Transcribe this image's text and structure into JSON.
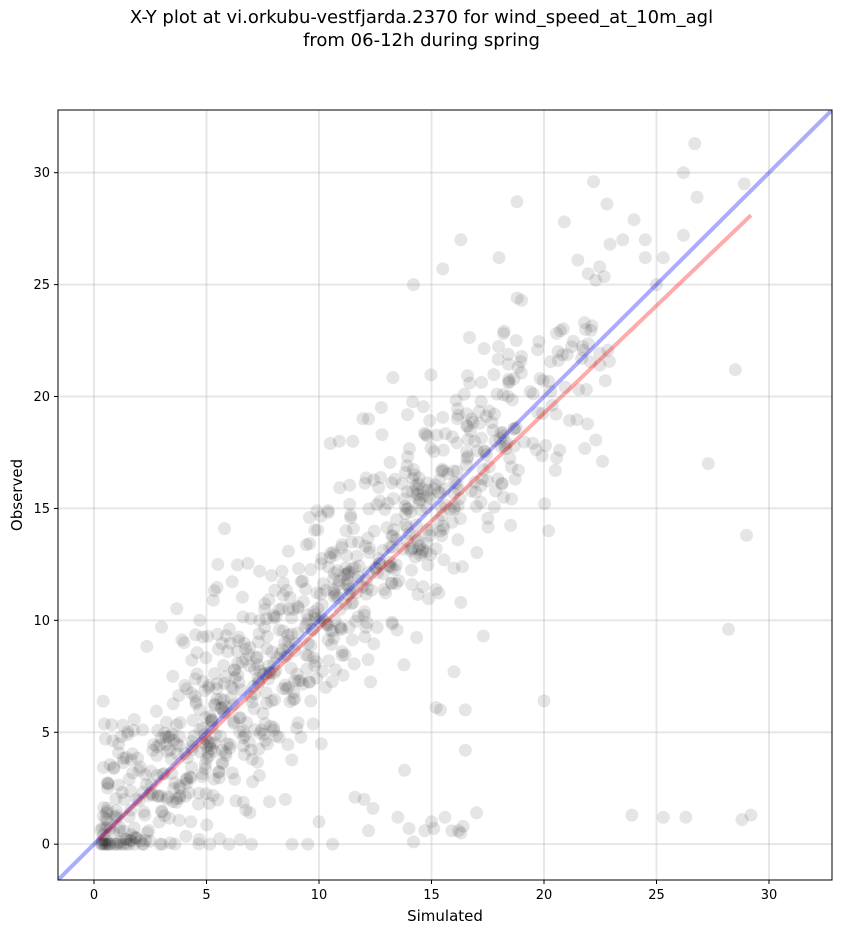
{
  "chart_data": {
    "type": "scatter",
    "title": "X-Y plot at vi.orkubu-vestfjarda.2370 for wind_speed_at_10m_agl\nfrom 06-12h during spring",
    "xlabel": "Simulated",
    "ylabel": "Observed",
    "xlim": [
      -1.6,
      32.8
    ],
    "ylim": [
      -1.6,
      32.8
    ],
    "xticks": [
      0,
      5,
      10,
      15,
      20,
      25,
      30
    ],
    "yticks": [
      0,
      5,
      10,
      15,
      20,
      25,
      30
    ],
    "grid": true,
    "point_color": "#000000",
    "point_alpha": 0.1,
    "reference_line": {
      "slope": 1,
      "intercept": 0,
      "color": "#0000ff",
      "alpha": 0.33
    },
    "fit_line": {
      "x": [
        0.2,
        29.2
      ],
      "y": [
        0.2,
        28.1
      ],
      "color": "#ff0000",
      "alpha": 0.33
    },
    "sparse_points": [
      [
        0.5,
        4.7
      ],
      [
        0.6,
        2.5
      ],
      [
        1.0,
        1.5
      ],
      [
        1.5,
        4.9
      ],
      [
        2.0,
        3.3
      ],
      [
        3.0,
        9.7
      ],
      [
        3.5,
        7.5
      ],
      [
        4.0,
        9.0
      ],
      [
        4.3,
        1.0
      ],
      [
        4.7,
        10.0
      ],
      [
        5.3,
        10.9
      ],
      [
        5.5,
        12.5
      ],
      [
        5.8,
        14.1
      ],
      [
        6.0,
        0.0
      ],
      [
        6.5,
        0.2
      ],
      [
        7.0,
        0.0
      ],
      [
        7.8,
        1.9
      ],
      [
        8.5,
        2.0
      ],
      [
        8.8,
        0.0
      ],
      [
        9.5,
        0.0
      ],
      [
        10.0,
        1.0
      ],
      [
        10.6,
        0.0
      ],
      [
        10.5,
        17.9
      ],
      [
        10.9,
        18.0
      ],
      [
        11.5,
        18.0
      ],
      [
        11.6,
        2.1
      ],
      [
        12.0,
        2.0
      ],
      [
        12.2,
        19.0
      ],
      [
        12.2,
        0.6
      ],
      [
        12.4,
        1.6
      ],
      [
        12.8,
        18.3
      ],
      [
        13.5,
        1.2
      ],
      [
        13.8,
        3.3
      ],
      [
        14.0,
        0.7
      ],
      [
        14.2,
        0.1
      ],
      [
        14.2,
        25.0
      ],
      [
        14.7,
        0.6
      ],
      [
        15.0,
        1.0
      ],
      [
        15.1,
        0.7
      ],
      [
        15.4,
        6.0
      ],
      [
        15.6,
        1.2
      ],
      [
        15.9,
        0.6
      ],
      [
        16.2,
        0.6
      ],
      [
        16.3,
        0.5
      ],
      [
        16.3,
        10.8
      ],
      [
        16.4,
        0.8
      ],
      [
        16.5,
        4.2
      ],
      [
        16.5,
        6.0
      ],
      [
        16.0,
        7.7
      ],
      [
        15.2,
        6.1
      ],
      [
        15.5,
        25.7
      ],
      [
        16.3,
        27.0
      ],
      [
        17.0,
        1.4
      ],
      [
        17.3,
        9.3
      ],
      [
        18.0,
        26.2
      ],
      [
        18.8,
        28.7
      ],
      [
        19.0,
        24.3
      ],
      [
        20.0,
        6.4
      ],
      [
        20.2,
        14.0
      ],
      [
        20.5,
        16.7
      ],
      [
        20.9,
        27.8
      ],
      [
        21.5,
        26.1
      ],
      [
        21.8,
        23.3
      ],
      [
        22.2,
        29.6
      ],
      [
        22.3,
        25.2
      ],
      [
        22.6,
        17.1
      ],
      [
        22.8,
        28.6
      ],
      [
        23.5,
        27.0
      ],
      [
        23.9,
        1.3
      ],
      [
        24.0,
        27.9
      ],
      [
        24.5,
        27.0
      ],
      [
        24.5,
        26.2
      ],
      [
        25.3,
        1.2
      ],
      [
        25.3,
        26.2
      ],
      [
        25.0,
        25.0
      ],
      [
        26.2,
        30.0
      ],
      [
        26.2,
        27.2
      ],
      [
        26.3,
        1.2
      ],
      [
        26.7,
        31.3
      ],
      [
        26.8,
        28.9
      ],
      [
        27.3,
        17.0
      ],
      [
        28.2,
        9.6
      ],
      [
        28.5,
        21.2
      ],
      [
        28.8,
        1.1
      ],
      [
        28.9,
        29.5
      ],
      [
        29.0,
        13.8
      ],
      [
        29.2,
        1.3
      ]
    ]
  }
}
